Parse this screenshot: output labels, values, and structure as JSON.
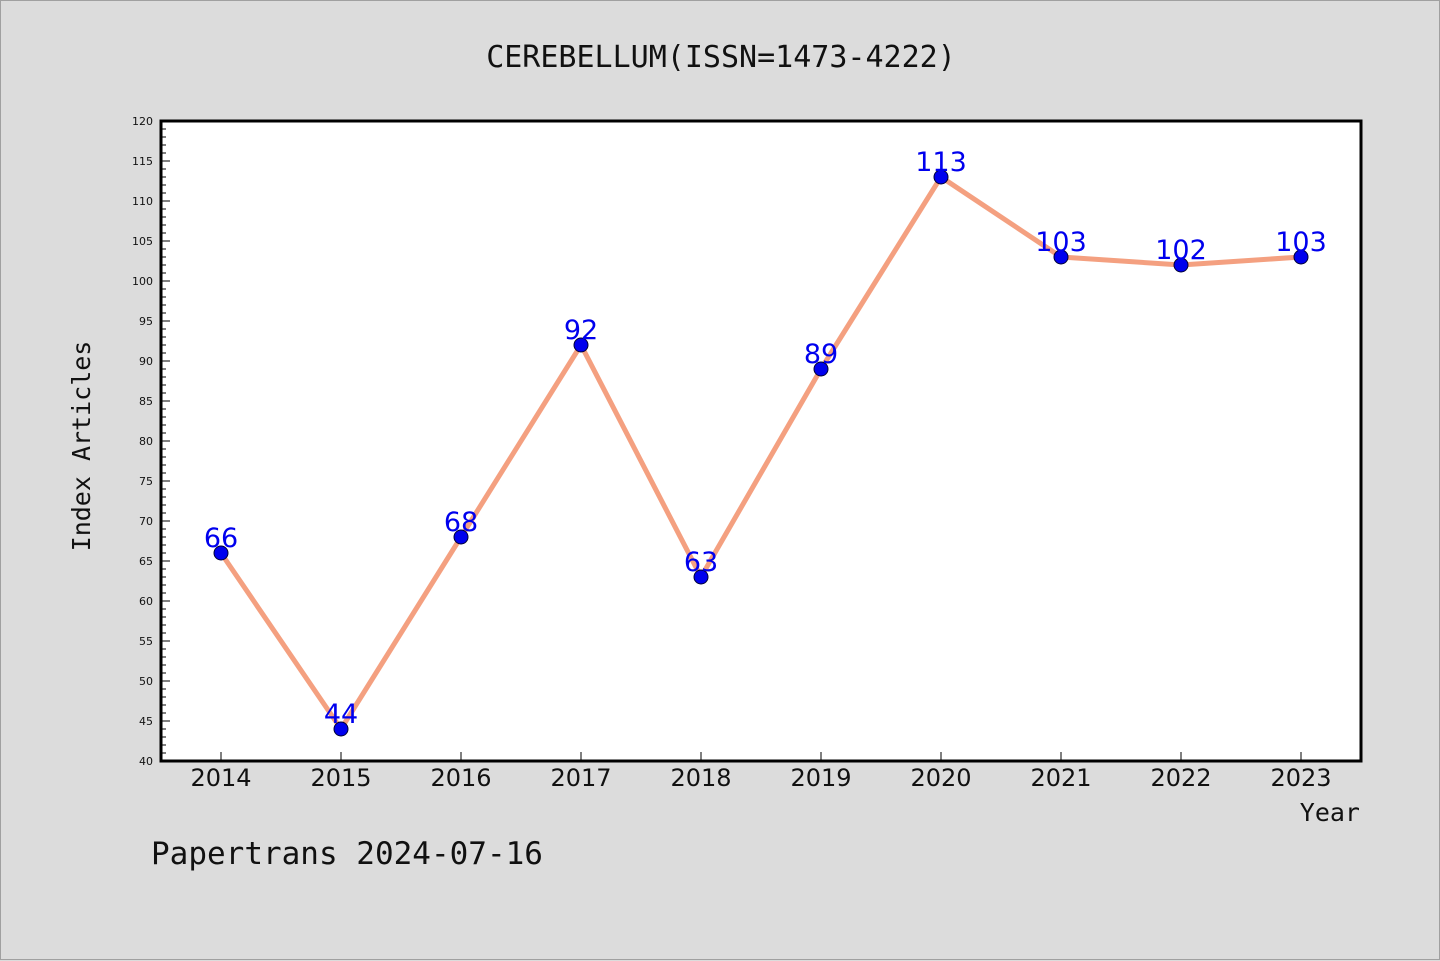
{
  "colors": {
    "background": "#dcdcdc",
    "plot_background": "#ffffff",
    "line": "#f4a080",
    "marker": "#0000ee",
    "data_label": "#0000ee"
  },
  "footer": "Papertrans 2024-07-16",
  "chart_data": {
    "type": "line",
    "title": "CEREBELLUM(ISSN=1473-4222)",
    "xlabel": "Year",
    "ylabel": "Index Articles",
    "categories": [
      "2014",
      "2015",
      "2016",
      "2017",
      "2018",
      "2019",
      "2020",
      "2021",
      "2022",
      "2023"
    ],
    "series": [
      {
        "values": [
          66,
          44,
          68,
          92,
          63,
          89,
          113,
          103,
          102,
          103
        ]
      }
    ],
    "ylim": [
      40,
      120
    ],
    "y_ticks": [
      40,
      45,
      50,
      55,
      60,
      65,
      70,
      75,
      80,
      85,
      90,
      95,
      100,
      105,
      110,
      115,
      120
    ],
    "data_labels": true,
    "grid": false,
    "legend": "none"
  }
}
